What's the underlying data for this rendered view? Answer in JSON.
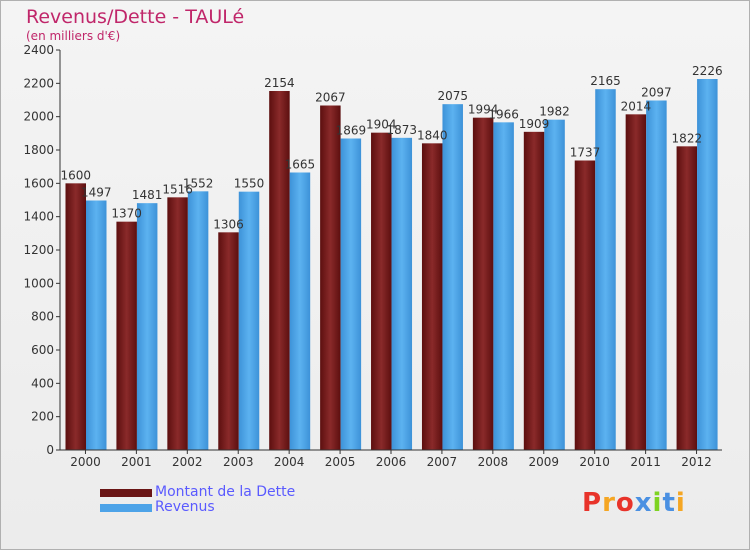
{
  "title": "Revenus/Dette - TAULé",
  "subtitle": "(en milliers d'€)",
  "logo": {
    "letters": [
      "P",
      "r",
      "o",
      "x",
      "i",
      "t",
      "i"
    ],
    "colors": [
      "#e8332a",
      "#f5a623",
      "#e8332a",
      "#4a90e2",
      "#7ed321",
      "#4a90e2",
      "#f5a623"
    ]
  },
  "chart_data": {
    "type": "bar",
    "categories": [
      "2000",
      "2001",
      "2002",
      "2003",
      "2004",
      "2005",
      "2006",
      "2007",
      "2008",
      "2009",
      "2010",
      "2011",
      "2012"
    ],
    "series": [
      {
        "name": "Montant de la Dette",
        "values": [
          1600,
          1370,
          1516,
          1306,
          2154,
          2067,
          1904,
          1840,
          1994,
          1909,
          1737,
          2014,
          1822
        ],
        "color": "#7a1f1f"
      },
      {
        "name": "Revenus",
        "values": [
          1497,
          1481,
          1552,
          1550,
          1665,
          1869,
          1873,
          2075,
          1966,
          1982,
          2165,
          2097,
          2226
        ],
        "color": "#4da3e8"
      }
    ],
    "yticks": [
      0,
      200,
      400,
      600,
      800,
      1000,
      1200,
      1400,
      1600,
      1800,
      2000,
      2200,
      2400
    ],
    "ylim": [
      0,
      2400
    ],
    "grid": false,
    "legend": "bottom-left"
  }
}
